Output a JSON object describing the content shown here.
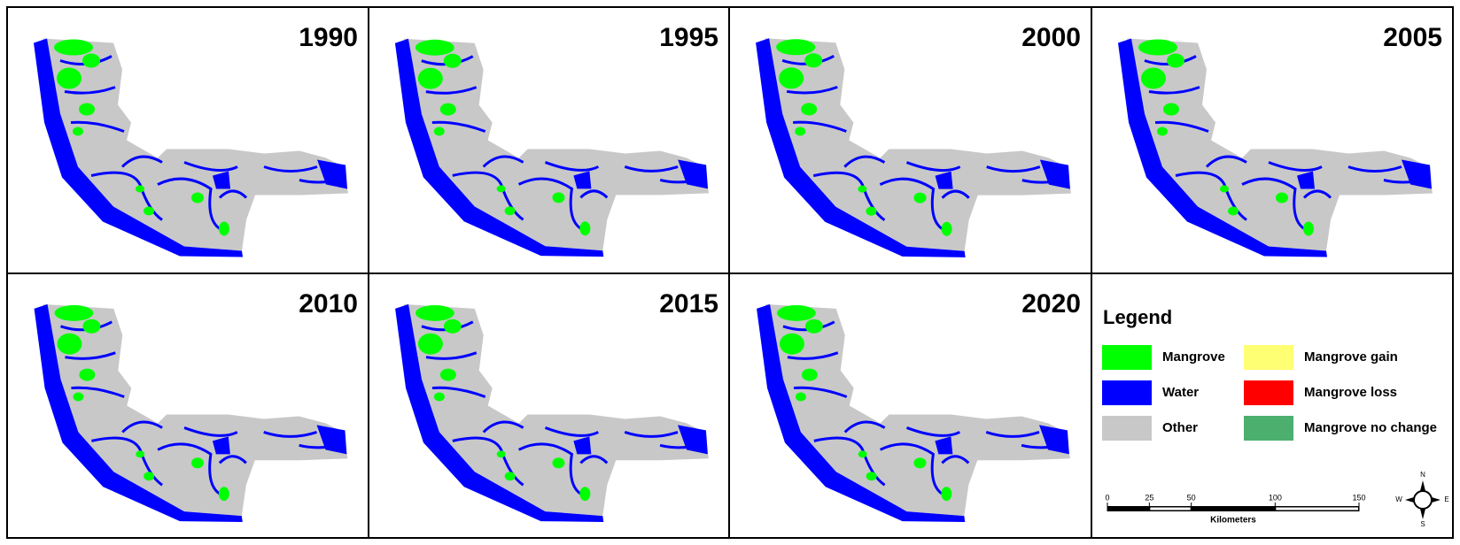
{
  "panels": [
    {
      "year": 1990
    },
    {
      "year": 1995
    },
    {
      "year": 2000
    },
    {
      "year": 2005
    },
    {
      "year": 2010
    },
    {
      "year": 2015
    },
    {
      "year": 2020
    }
  ],
  "legend": {
    "title": "Legend",
    "items": [
      {
        "label": "Mangrove",
        "color": "#00ff00"
      },
      {
        "label": "Water",
        "color": "#0000ff"
      },
      {
        "label": "Other",
        "color": "#c8c8c8"
      },
      {
        "label": "Mangrove gain",
        "color": "#ffff73"
      },
      {
        "label": "Mangrove loss",
        "color": "#ff0000"
      },
      {
        "label": "Mangrove no change",
        "color": "#4caf6e"
      }
    ]
  },
  "scale_bar": {
    "ticks": [
      0,
      25,
      50,
      100,
      150
    ],
    "unit": "Kilometers"
  },
  "north_arrow": {
    "n": "N",
    "e": "E",
    "s": "S",
    "w": "W"
  }
}
